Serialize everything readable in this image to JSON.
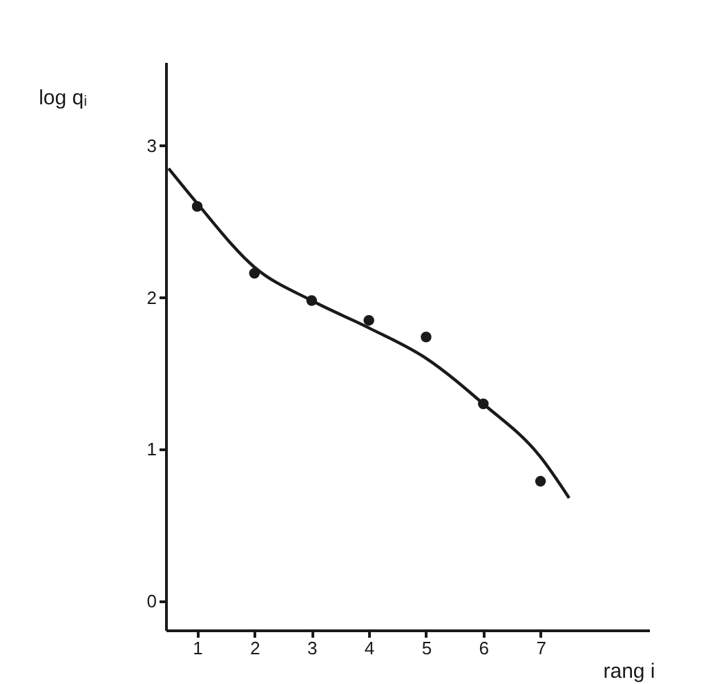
{
  "chart_data": {
    "type": "scatter",
    "xlabel": "rang i",
    "ylabel": "log qᵢ",
    "xlim": [
      0.45,
      8.9
    ],
    "ylim": [
      -0.19,
      3.55
    ],
    "xticks": [
      1,
      2,
      3,
      4,
      5,
      6,
      7
    ],
    "yticks": [
      0,
      1,
      2,
      3
    ],
    "grid": false,
    "series": [
      {
        "color": "#1a1a1a",
        "marker": "circle",
        "x": [
          1,
          2,
          3,
          4,
          5,
          6,
          7
        ],
        "values": [
          2.6,
          2.16,
          1.98,
          1.85,
          1.74,
          1.3,
          0.79
        ]
      },
      {
        "type": "line",
        "color": "#1a1a1a",
        "marker": "none",
        "x": [
          0.5,
          1,
          2,
          3,
          4,
          5,
          6,
          7,
          7.5
        ],
        "values": [
          2.85,
          2.62,
          2.2,
          1.98,
          1.8,
          1.6,
          1.3,
          0.95,
          0.68
        ]
      }
    ]
  }
}
